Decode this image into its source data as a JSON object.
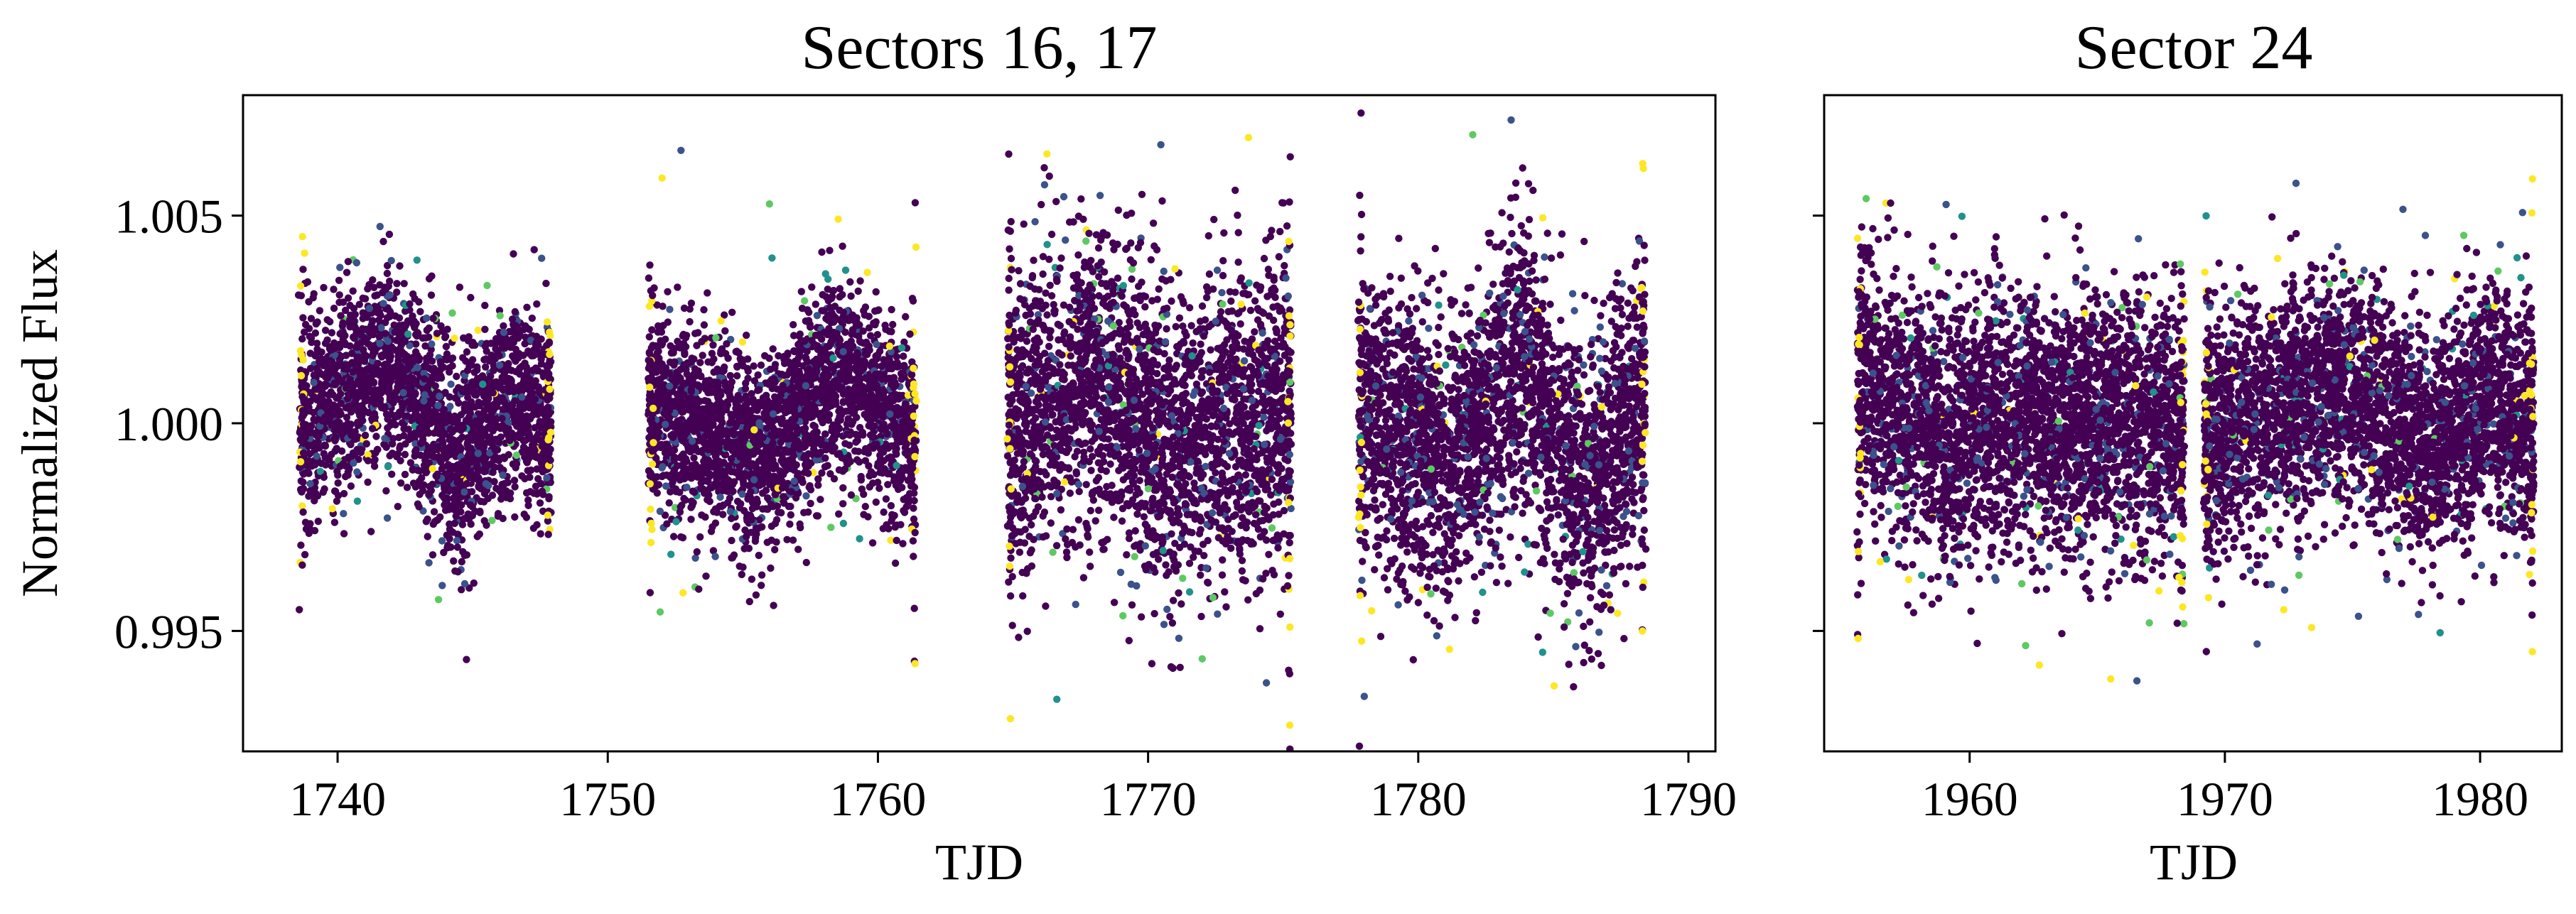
{
  "chart_data": [
    {
      "type": "scatter",
      "title": "Sectors 16, 17",
      "xlabel": "TJD",
      "ylabel": "Normalized Flux",
      "xlim": [
        1736.5,
        1791.0
      ],
      "ylim": [
        0.9921,
        1.0079
      ],
      "xticks": [
        1740,
        1750,
        1760,
        1770,
        1780,
        1790
      ],
      "xtick_labels": [
        "1740",
        "1750",
        "1760",
        "1770",
        "1780",
        "1790"
      ],
      "yticks": [
        0.995,
        1.0,
        1.005
      ],
      "ytick_labels": [
        "0.995",
        "1.000",
        "1.005"
      ],
      "grid": false,
      "legend": "none",
      "colormap": [
        "#440154",
        "#3b528b",
        "#21918c",
        "#5ec962",
        "#fde725"
      ],
      "segments": [
        {
          "x_start": 1738.6,
          "x_end": 1747.9,
          "center": 1.0,
          "amplitude": 0.0028,
          "trend": [
            [
              1738.6,
              0.0
            ],
            [
              1742.0,
              0.0015
            ],
            [
              1744.5,
              -0.001
            ],
            [
              1746.5,
              0.0008
            ],
            [
              1747.9,
              0.0
            ]
          ]
        },
        {
          "x_start": 1751.5,
          "x_end": 1761.4,
          "center": 1.0,
          "amplitude": 0.0027,
          "trend": [
            [
              1751.5,
              0.0005
            ],
            [
              1755.5,
              -0.0008
            ],
            [
              1758.5,
              0.0012
            ],
            [
              1761.4,
              -0.0005
            ]
          ]
        },
        {
          "x_start": 1764.8,
          "x_end": 1775.3,
          "center": 1.0,
          "amplitude": 0.0042,
          "trend": [
            [
              1764.8,
              -0.0003
            ],
            [
              1768.0,
              0.0012
            ],
            [
              1771.0,
              -0.0005
            ],
            [
              1775.3,
              0.0005
            ]
          ]
        },
        {
          "x_start": 1777.8,
          "x_end": 1788.4,
          "center": 1.0,
          "amplitude": 0.004,
          "trend": [
            [
              1777.8,
              0.0005
            ],
            [
              1781.0,
              -0.001
            ],
            [
              1783.8,
              0.0015
            ],
            [
              1786.0,
              -0.0015
            ],
            [
              1788.4,
              0.0005
            ]
          ]
        }
      ]
    },
    {
      "type": "scatter",
      "title": "Sector 24",
      "xlabel": "TJD",
      "ylabel": "",
      "xlim": [
        1954.3,
        1983.2
      ],
      "ylim": [
        0.9921,
        1.0079
      ],
      "xticks": [
        1960,
        1970,
        1980
      ],
      "xtick_labels": [
        "1960",
        "1970",
        "1980"
      ],
      "yticks": [
        0.995,
        1.0,
        1.005
      ],
      "ytick_labels": [],
      "grid": false,
      "legend": "none",
      "colormap": [
        "#440154",
        "#3b528b",
        "#21918c",
        "#5ec962",
        "#fde725"
      ],
      "segments": [
        {
          "x_start": 1955.6,
          "x_end": 1968.4,
          "center": 1.0,
          "amplitude": 0.0036,
          "trend": [
            [
              1955.6,
              0.0012
            ],
            [
              1958.5,
              -0.0002
            ],
            [
              1962.0,
              0.0002
            ],
            [
              1965.5,
              0.0
            ],
            [
              1968.4,
              -0.0003
            ]
          ]
        },
        {
          "x_start": 1969.2,
          "x_end": 1982.1,
          "center": 1.0,
          "amplitude": 0.0033,
          "trend": [
            [
              1969.2,
              -0.0005
            ],
            [
              1972.5,
              0.0005
            ],
            [
              1975.0,
              0.0008
            ],
            [
              1978.0,
              -0.0006
            ],
            [
              1980.5,
              0.0005
            ],
            [
              1982.1,
              0.0
            ]
          ]
        }
      ]
    }
  ]
}
